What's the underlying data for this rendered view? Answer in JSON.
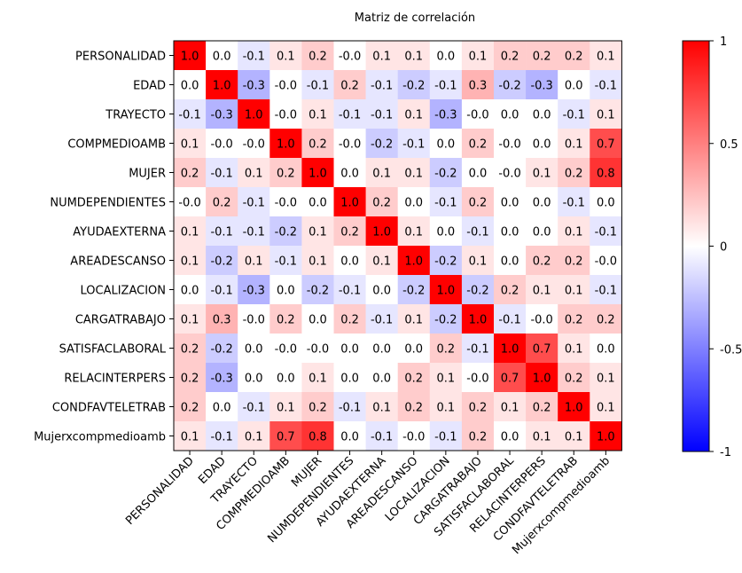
{
  "chart_data": {
    "type": "heatmap",
    "title": "Matriz de correlación",
    "labels": [
      "PERSONALIDAD",
      "EDAD",
      "TRAYECTO",
      "COMPMEDIOAMB",
      "MUJER",
      "NUMDEPENDIENTES",
      "AYUDAEXTERNA",
      "AREADESCANSO",
      "LOCALIZACION",
      "CARGATRABAJO",
      "SATISFACLABORAL",
      "RELACINTERPERS",
      "CONDFAVTELETRAB",
      "Mujerxcompmedioamb"
    ],
    "values": [
      [
        1.0,
        0.0,
        -0.1,
        0.1,
        0.2,
        -0.0,
        0.1,
        0.1,
        0.0,
        0.1,
        0.2,
        0.2,
        0.2,
        0.1
      ],
      [
        0.0,
        1.0,
        -0.3,
        -0.0,
        -0.1,
        0.2,
        -0.1,
        -0.2,
        -0.1,
        0.3,
        -0.2,
        -0.3,
        0.0,
        -0.1
      ],
      [
        -0.1,
        -0.3,
        1.0,
        -0.0,
        0.1,
        -0.1,
        -0.1,
        0.1,
        -0.3,
        -0.0,
        0.0,
        0.0,
        -0.1,
        0.1
      ],
      [
        0.1,
        -0.0,
        -0.0,
        1.0,
        0.2,
        -0.0,
        -0.2,
        -0.1,
        0.0,
        0.2,
        -0.0,
        0.0,
        0.1,
        0.7
      ],
      [
        0.2,
        -0.1,
        0.1,
        0.2,
        1.0,
        0.0,
        0.1,
        0.1,
        -0.2,
        0.0,
        -0.0,
        0.1,
        0.2,
        0.8
      ],
      [
        -0.0,
        0.2,
        -0.1,
        -0.0,
        0.0,
        1.0,
        0.2,
        0.0,
        -0.1,
        0.2,
        0.0,
        0.0,
        -0.1,
        0.0
      ],
      [
        0.1,
        -0.1,
        -0.1,
        -0.2,
        0.1,
        0.2,
        1.0,
        0.1,
        0.0,
        -0.1,
        0.0,
        0.0,
        0.1,
        -0.1
      ],
      [
        0.1,
        -0.2,
        0.1,
        -0.1,
        0.1,
        0.0,
        0.1,
        1.0,
        -0.2,
        0.1,
        0.0,
        0.2,
        0.2,
        -0.0
      ],
      [
        0.0,
        -0.1,
        -0.3,
        0.0,
        -0.2,
        -0.1,
        0.0,
        -0.2,
        1.0,
        -0.2,
        0.2,
        0.1,
        0.1,
        -0.1
      ],
      [
        0.1,
        0.3,
        -0.0,
        0.2,
        0.0,
        0.2,
        -0.1,
        0.1,
        -0.2,
        1.0,
        -0.1,
        -0.0,
        0.2,
        0.2
      ],
      [
        0.2,
        -0.2,
        0.0,
        -0.0,
        -0.0,
        0.0,
        0.0,
        0.0,
        0.2,
        -0.1,
        1.0,
        0.7,
        0.1,
        0.0
      ],
      [
        0.2,
        -0.3,
        0.0,
        0.0,
        0.1,
        0.0,
        0.0,
        0.2,
        0.1,
        -0.0,
        0.7,
        1.0,
        0.2,
        0.1
      ],
      [
        0.2,
        0.0,
        -0.1,
        0.1,
        0.2,
        -0.1,
        0.1,
        0.2,
        0.1,
        0.2,
        0.1,
        0.2,
        1.0,
        0.1
      ],
      [
        0.1,
        -0.1,
        0.1,
        0.7,
        0.8,
        0.0,
        -0.1,
        -0.0,
        -0.1,
        0.2,
        0.0,
        0.1,
        0.1,
        1.0
      ]
    ],
    "colorbar": {
      "range": [
        -1,
        1
      ],
      "ticks": [
        "1",
        "0.5",
        "0",
        "-0.5",
        "-1"
      ],
      "tick_values": [
        1,
        0.5,
        0,
        -0.5,
        -1
      ],
      "colormap": "bwr",
      "colors": {
        "negative": "#0000ff",
        "zero": "#ffffff",
        "positive": "#ff0000"
      }
    },
    "grid": false
  }
}
